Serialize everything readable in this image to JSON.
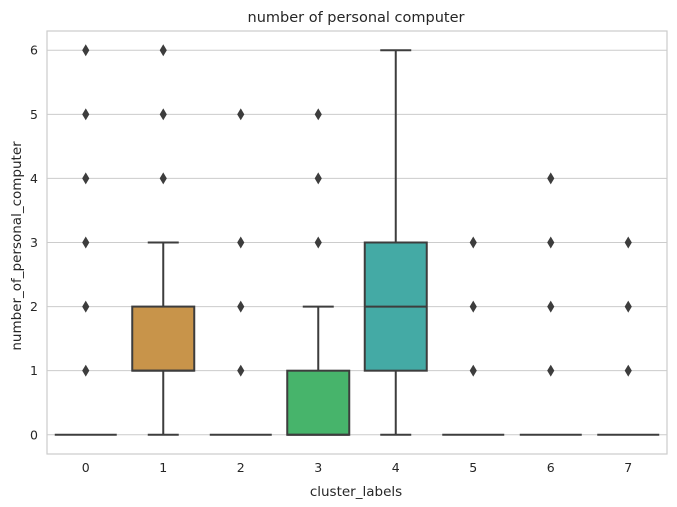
{
  "chart_data": {
    "type": "boxplot",
    "title": "number of personal computer",
    "xlabel": "cluster_labels",
    "ylabel": "number_of_personal_computer",
    "categories": [
      "0",
      "1",
      "2",
      "3",
      "4",
      "5",
      "6",
      "7"
    ],
    "ylim": [
      -0.3,
      6.3
    ],
    "yticks": [
      0,
      1,
      2,
      3,
      4,
      5,
      6
    ],
    "grid": "horizontal",
    "boxes": [
      {
        "category": "0",
        "q1": 0,
        "median": 0,
        "q3": 0,
        "whisker_low": 0,
        "whisker_high": 0,
        "outliers": [
          1,
          2,
          3,
          4,
          5,
          6
        ],
        "color": "#3274a1"
      },
      {
        "category": "1",
        "q1": 1,
        "median": 1,
        "q3": 2,
        "whisker_low": 0,
        "whisker_high": 3,
        "outliers": [
          4,
          5,
          6
        ],
        "color": "#c8944a"
      },
      {
        "category": "2",
        "q1": 0,
        "median": 0,
        "q3": 0,
        "whisker_low": 0,
        "whisker_high": 0,
        "outliers": [
          1,
          2,
          3,
          5
        ],
        "color": "#3a923a"
      },
      {
        "category": "3",
        "q1": 0,
        "median": 0,
        "q3": 1,
        "whisker_low": 0,
        "whisker_high": 2,
        "outliers": [
          3,
          4,
          5
        ],
        "color": "#47b46b"
      },
      {
        "category": "4",
        "q1": 1,
        "median": 2,
        "q3": 3,
        "whisker_low": 0,
        "whisker_high": 6,
        "outliers": [],
        "color": "#44aaa5"
      },
      {
        "category": "5",
        "q1": 0,
        "median": 0,
        "q3": 0,
        "whisker_low": 0,
        "whisker_high": 0,
        "outliers": [
          1,
          2,
          3
        ],
        "color": "#4c72b0"
      },
      {
        "category": "6",
        "q1": 0,
        "median": 0,
        "q3": 0,
        "whisker_low": 0,
        "whisker_high": 0,
        "outliers": [
          1,
          2,
          3,
          4
        ],
        "color": "#8c8c8c"
      },
      {
        "category": "7",
        "q1": 0,
        "median": 0,
        "q3": 0,
        "whisker_low": 0,
        "whisker_high": 0,
        "outliers": [
          1,
          2,
          3
        ],
        "color": "#8c8c8c"
      }
    ]
  }
}
